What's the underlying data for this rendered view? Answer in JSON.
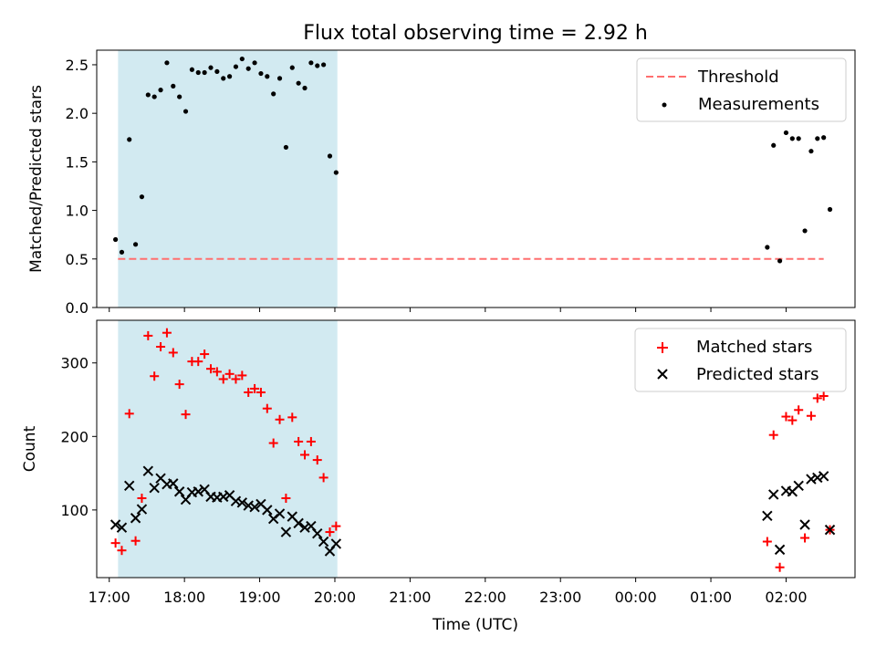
{
  "title": "Flux total observing time = 2.92 h",
  "colors": {
    "measurements": "#000000",
    "threshold": "#ff6f6f",
    "matched": "#ff0000",
    "predicted": "#000000",
    "observing_span": "#add8e6"
  },
  "chart_data": [
    {
      "type": "scatter",
      "ylabel": "Matched/Predicted stars",
      "xlim": [
        "16:50",
        "02:55"
      ],
      "ylim": [
        0.0,
        2.65
      ],
      "yticks": [
        "0.0",
        "0.5",
        "1.0",
        "1.5",
        "2.0",
        "2.5"
      ],
      "legend": {
        "placement": "top-right",
        "entries": [
          "Threshold",
          "Measurements"
        ]
      },
      "shaded_span": [
        "17:07",
        "20:02"
      ],
      "threshold": {
        "name": "Threshold",
        "y": 0.5,
        "x_range": [
          "17:07",
          "02:30"
        ]
      },
      "series": [
        {
          "name": "Measurements",
          "points": [
            [
              "17:05",
              0.7
            ],
            [
              "17:10",
              0.57
            ],
            [
              "17:16",
              1.73
            ],
            [
              "17:21",
              0.65
            ],
            [
              "17:26",
              1.14
            ],
            [
              "17:31",
              2.19
            ],
            [
              "17:36",
              2.17
            ],
            [
              "17:41",
              2.24
            ],
            [
              "17:46",
              2.52
            ],
            [
              "17:51",
              2.28
            ],
            [
              "17:56",
              2.17
            ],
            [
              "18:01",
              2.02
            ],
            [
              "18:06",
              2.45
            ],
            [
              "18:11",
              2.42
            ],
            [
              "18:16",
              2.42
            ],
            [
              "18:21",
              2.47
            ],
            [
              "18:26",
              2.43
            ],
            [
              "18:31",
              2.36
            ],
            [
              "18:36",
              2.38
            ],
            [
              "18:41",
              2.48
            ],
            [
              "18:46",
              2.56
            ],
            [
              "18:51",
              2.46
            ],
            [
              "18:56",
              2.52
            ],
            [
              "19:01",
              2.41
            ],
            [
              "19:06",
              2.38
            ],
            [
              "19:11",
              2.2
            ],
            [
              "19:16",
              2.36
            ],
            [
              "19:21",
              1.65
            ],
            [
              "19:26",
              2.47
            ],
            [
              "19:31",
              2.31
            ],
            [
              "19:36",
              2.26
            ],
            [
              "19:41",
              2.52
            ],
            [
              "19:46",
              2.49
            ],
            [
              "19:51",
              2.5
            ],
            [
              "19:56",
              1.56
            ],
            [
              "20:01",
              1.39
            ],
            [
              "01:45",
              0.62
            ],
            [
              "01:50",
              1.67
            ],
            [
              "01:55",
              0.48
            ],
            [
              "02:00",
              1.8
            ],
            [
              "02:05",
              1.74
            ],
            [
              "02:10",
              1.74
            ],
            [
              "02:15",
              0.79
            ],
            [
              "02:20",
              1.61
            ],
            [
              "02:25",
              1.74
            ],
            [
              "02:30",
              1.75
            ],
            [
              "02:35",
              1.01
            ]
          ]
        }
      ]
    },
    {
      "type": "scatter",
      "xlabel": "Time (UTC)",
      "ylabel": "Count",
      "xlim": [
        "16:50",
        "02:55"
      ],
      "ylim": [
        8,
        358
      ],
      "yticks": [
        "100",
        "200",
        "300"
      ],
      "xticks": [
        "17:00",
        "18:00",
        "19:00",
        "20:00",
        "21:00",
        "22:00",
        "23:00",
        "00:00",
        "01:00",
        "02:00"
      ],
      "legend": {
        "placement": "top-right",
        "entries": [
          "Matched stars",
          "Predicted stars"
        ]
      },
      "shaded_span": [
        "17:07",
        "20:02"
      ],
      "series": [
        {
          "name": "Matched stars",
          "marker": "+",
          "points": [
            [
              "17:05",
              55
            ],
            [
              "17:10",
              45
            ],
            [
              "17:16",
              231
            ],
            [
              "17:21",
              58
            ],
            [
              "17:26",
              116
            ],
            [
              "17:31",
              337
            ],
            [
              "17:36",
              282
            ],
            [
              "17:41",
              322
            ],
            [
              "17:46",
              341
            ],
            [
              "17:51",
              314
            ],
            [
              "17:56",
              271
            ],
            [
              "18:01",
              230
            ],
            [
              "18:06",
              302
            ],
            [
              "18:11",
              302
            ],
            [
              "18:16",
              312
            ],
            [
              "18:21",
              292
            ],
            [
              "18:26",
              288
            ],
            [
              "18:31",
              278
            ],
            [
              "18:36",
              285
            ],
            [
              "18:41",
              278
            ],
            [
              "18:46",
              283
            ],
            [
              "18:51",
              260
            ],
            [
              "18:56",
              265
            ],
            [
              "19:01",
              260
            ],
            [
              "19:06",
              238
            ],
            [
              "19:11",
              191
            ],
            [
              "19:16",
              223
            ],
            [
              "19:21",
              116
            ],
            [
              "19:26",
              226
            ],
            [
              "19:31",
              193
            ],
            [
              "19:36",
              175
            ],
            [
              "19:41",
              193
            ],
            [
              "19:46",
              168
            ],
            [
              "19:51",
              144
            ],
            [
              "19:56",
              70
            ],
            [
              "20:01",
              78
            ],
            [
              "01:45",
              57
            ],
            [
              "01:50",
              202
            ],
            [
              "01:55",
              22
            ],
            [
              "02:00",
              227
            ],
            [
              "02:05",
              222
            ],
            [
              "02:10",
              236
            ],
            [
              "02:15",
              62
            ],
            [
              "02:20",
              228
            ],
            [
              "02:25",
              252
            ],
            [
              "02:30",
              255
            ],
            [
              "02:35",
              73
            ]
          ]
        },
        {
          "name": "Predicted stars",
          "marker": "x",
          "points": [
            [
              "17:05",
              80
            ],
            [
              "17:10",
              76
            ],
            [
              "17:16",
              133
            ],
            [
              "17:21",
              89
            ],
            [
              "17:26",
              101
            ],
            [
              "17:31",
              153
            ],
            [
              "17:36",
              130
            ],
            [
              "17:41",
              143
            ],
            [
              "17:46",
              135
            ],
            [
              "17:51",
              136
            ],
            [
              "17:56",
              125
            ],
            [
              "18:01",
              114
            ],
            [
              "18:06",
              124
            ],
            [
              "18:11",
              125
            ],
            [
              "18:16",
              128
            ],
            [
              "18:21",
              118
            ],
            [
              "18:26",
              117
            ],
            [
              "18:31",
              118
            ],
            [
              "18:36",
              120
            ],
            [
              "18:41",
              112
            ],
            [
              "18:46",
              110
            ],
            [
              "18:51",
              106
            ],
            [
              "18:56",
              104
            ],
            [
              "19:01",
              108
            ],
            [
              "19:06",
              100
            ],
            [
              "19:11",
              88
            ],
            [
              "19:16",
              95
            ],
            [
              "19:21",
              70
            ],
            [
              "19:26",
              91
            ],
            [
              "19:31",
              82
            ],
            [
              "19:36",
              76
            ],
            [
              "19:41",
              78
            ],
            [
              "19:46",
              68
            ],
            [
              "19:51",
              57
            ],
            [
              "19:56",
              44
            ],
            [
              "20:01",
              54
            ],
            [
              "01:45",
              92
            ],
            [
              "01:50",
              121
            ],
            [
              "01:55",
              46
            ],
            [
              "02:00",
              126
            ],
            [
              "02:05",
              125
            ],
            [
              "02:10",
              133
            ],
            [
              "02:15",
              80
            ],
            [
              "02:20",
              142
            ],
            [
              "02:25",
              144
            ],
            [
              "02:30",
              146
            ],
            [
              "02:35",
              73
            ]
          ]
        }
      ]
    }
  ]
}
